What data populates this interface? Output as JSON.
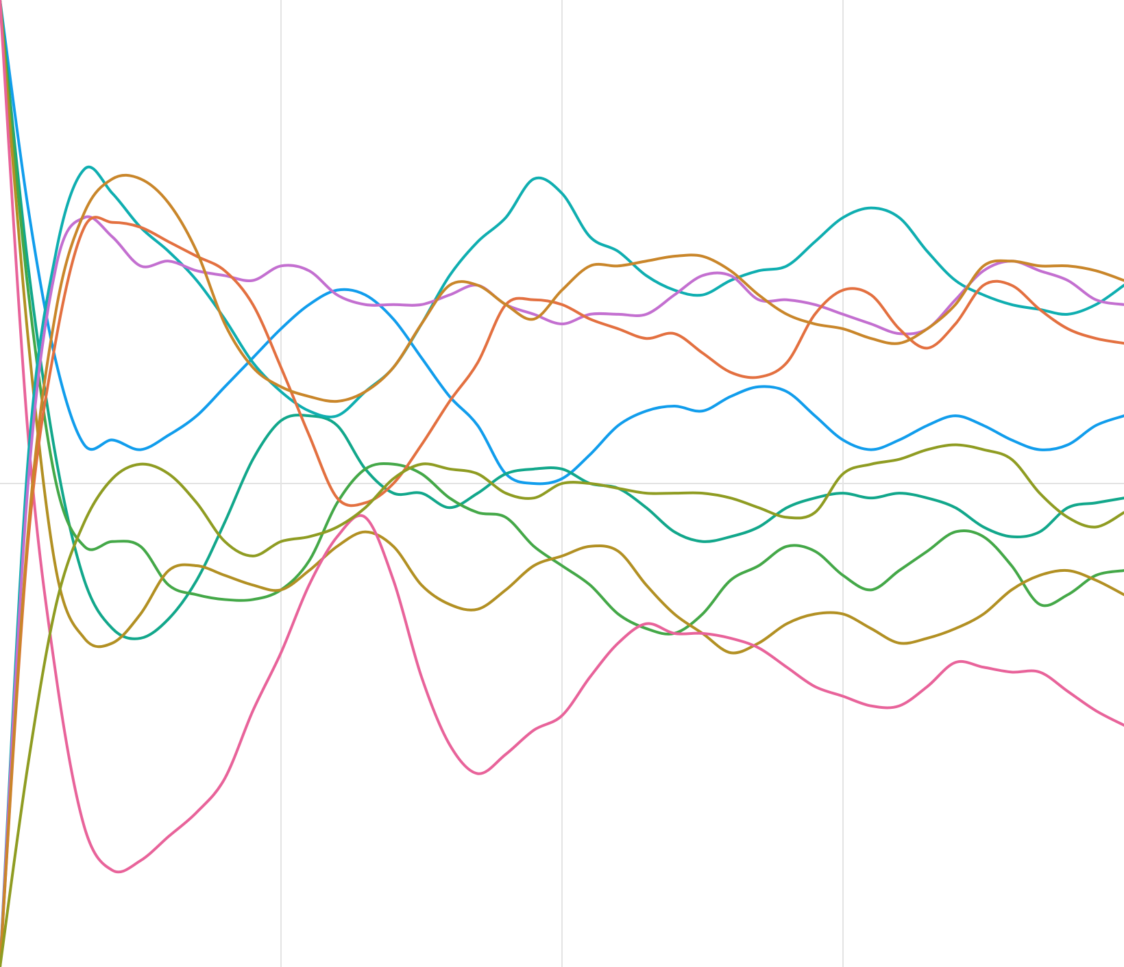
{
  "chart_data": [
    {
      "type": "line",
      "xlim": [
        0,
        4
      ],
      "ylim": [
        0,
        2
      ],
      "x_grid": [
        1,
        2,
        3
      ],
      "y_grid": [
        1
      ],
      "grid": true,
      "series": [
        {
          "color": "#119DEC",
          "x": [
            0,
            0.1,
            0.2,
            0.3,
            0.4,
            0.5,
            0.6,
            0.7,
            0.8,
            0.9,
            1.0,
            1.1,
            1.2,
            1.3,
            1.4,
            1.5,
            1.6,
            1.7,
            1.8,
            1.9,
            2.0,
            2.1,
            2.2,
            2.3,
            2.4,
            2.5,
            2.6,
            2.7,
            2.8,
            2.9,
            3.0,
            3.1,
            3.2,
            3.3,
            3.4,
            3.5,
            3.6,
            3.7,
            3.8,
            3.9,
            4.0
          ],
          "y": [
            2.0,
            1.57,
            1.25,
            1.08,
            1.09,
            1.07,
            1.1,
            1.14,
            1.2,
            1.26,
            1.32,
            1.37,
            1.4,
            1.39,
            1.34,
            1.26,
            1.18,
            1.12,
            1.02,
            1.0,
            1.01,
            1.06,
            1.12,
            1.15,
            1.16,
            1.15,
            1.18,
            1.2,
            1.19,
            1.14,
            1.09,
            1.07,
            1.09,
            1.12,
            1.14,
            1.12,
            1.09,
            1.07,
            1.08,
            1.12,
            1.14
          ]
        },
        {
          "color": "#12A78B",
          "x": [
            0,
            0.1,
            0.2,
            0.3,
            0.4,
            0.5,
            0.6,
            0.7,
            0.8,
            0.9,
            1.0,
            1.1,
            1.2,
            1.3,
            1.4,
            1.5,
            1.6,
            1.7,
            1.8,
            1.9,
            2.0,
            2.1,
            2.2,
            2.3,
            2.4,
            2.5,
            2.6,
            2.7,
            2.8,
            2.9,
            3.0,
            3.1,
            3.2,
            3.3,
            3.4,
            3.5,
            3.6,
            3.7,
            3.8,
            3.9,
            4.0
          ],
          "y": [
            2.0,
            1.45,
            1.05,
            0.8,
            0.7,
            0.68,
            0.72,
            0.8,
            0.92,
            1.05,
            1.13,
            1.14,
            1.12,
            1.03,
            0.98,
            0.98,
            0.95,
            0.98,
            1.02,
            1.03,
            1.03,
            1.0,
            0.99,
            0.95,
            0.9,
            0.88,
            0.89,
            0.91,
            0.95,
            0.97,
            0.98,
            0.97,
            0.98,
            0.97,
            0.95,
            0.91,
            0.89,
            0.9,
            0.95,
            0.96,
            0.97
          ]
        },
        {
          "color": "#44A848",
          "x": [
            0,
            0.1,
            0.2,
            0.3,
            0.4,
            0.5,
            0.6,
            0.7,
            0.8,
            0.9,
            1.0,
            1.1,
            1.2,
            1.3,
            1.4,
            1.5,
            1.6,
            1.7,
            1.8,
            1.9,
            2.0,
            2.1,
            2.2,
            2.3,
            2.4,
            2.5,
            2.6,
            2.7,
            2.8,
            2.9,
            3.0,
            3.1,
            3.2,
            3.3,
            3.4,
            3.5,
            3.6,
            3.7,
            3.8,
            3.9,
            4.0
          ],
          "y": [
            2.0,
            1.4,
            1.0,
            0.87,
            0.88,
            0.87,
            0.79,
            0.77,
            0.76,
            0.76,
            0.78,
            0.84,
            0.96,
            1.03,
            1.04,
            1.02,
            0.97,
            0.94,
            0.93,
            0.87,
            0.83,
            0.79,
            0.73,
            0.7,
            0.69,
            0.73,
            0.8,
            0.83,
            0.87,
            0.86,
            0.81,
            0.78,
            0.82,
            0.86,
            0.9,
            0.89,
            0.83,
            0.75,
            0.77,
            0.81,
            0.82
          ]
        },
        {
          "color": "#B29023",
          "x": [
            0,
            0.1,
            0.2,
            0.3,
            0.4,
            0.5,
            0.6,
            0.7,
            0.8,
            0.9,
            1.0,
            1.1,
            1.2,
            1.3,
            1.4,
            1.5,
            1.6,
            1.7,
            1.8,
            1.9,
            2.0,
            2.1,
            2.2,
            2.3,
            2.4,
            2.5,
            2.6,
            2.7,
            2.8,
            2.9,
            3.0,
            3.1,
            3.2,
            3.3,
            3.4,
            3.5,
            3.6,
            3.7,
            3.8,
            3.9,
            4.0
          ],
          "y": [
            2.0,
            1.3,
            0.82,
            0.68,
            0.67,
            0.73,
            0.82,
            0.83,
            0.81,
            0.79,
            0.78,
            0.82,
            0.87,
            0.9,
            0.87,
            0.79,
            0.75,
            0.74,
            0.78,
            0.83,
            0.85,
            0.87,
            0.86,
            0.79,
            0.73,
            0.69,
            0.65,
            0.67,
            0.71,
            0.73,
            0.73,
            0.7,
            0.67,
            0.68,
            0.7,
            0.73,
            0.78,
            0.81,
            0.82,
            0.8,
            0.77
          ]
        },
        {
          "color": "#E8639A",
          "x": [
            0,
            0.1,
            0.2,
            0.3,
            0.4,
            0.5,
            0.6,
            0.7,
            0.8,
            0.9,
            1.0,
            1.1,
            1.2,
            1.3,
            1.4,
            1.5,
            1.6,
            1.7,
            1.8,
            1.9,
            2.0,
            2.1,
            2.2,
            2.3,
            2.4,
            2.5,
            2.6,
            2.7,
            2.8,
            2.9,
            3.0,
            3.1,
            3.2,
            3.3,
            3.4,
            3.5,
            3.6,
            3.7,
            3.8,
            3.9,
            4.0
          ],
          "y": [
            2.0,
            1.1,
            0.6,
            0.29,
            0.2,
            0.22,
            0.27,
            0.32,
            0.39,
            0.53,
            0.65,
            0.79,
            0.89,
            0.93,
            0.8,
            0.6,
            0.46,
            0.4,
            0.44,
            0.49,
            0.52,
            0.6,
            0.67,
            0.71,
            0.69,
            0.69,
            0.68,
            0.66,
            0.62,
            0.58,
            0.56,
            0.54,
            0.54,
            0.58,
            0.63,
            0.62,
            0.61,
            0.61,
            0.57,
            0.53,
            0.5
          ]
        },
        {
          "color": "#0FAEB0",
          "x": [
            0,
            0.1,
            0.2,
            0.3,
            0.4,
            0.5,
            0.6,
            0.7,
            0.8,
            0.9,
            1.0,
            1.1,
            1.2,
            1.3,
            1.4,
            1.5,
            1.6,
            1.7,
            1.8,
            1.9,
            2.0,
            2.1,
            2.2,
            2.3,
            2.4,
            2.5,
            2.6,
            2.7,
            2.8,
            2.9,
            3.0,
            3.1,
            3.2,
            3.3,
            3.4,
            3.5,
            3.6,
            3.7,
            3.8,
            3.9,
            4.0
          ],
          "y": [
            0.0,
            1.05,
            1.48,
            1.65,
            1.6,
            1.53,
            1.48,
            1.42,
            1.34,
            1.25,
            1.19,
            1.15,
            1.14,
            1.19,
            1.24,
            1.33,
            1.43,
            1.5,
            1.55,
            1.63,
            1.6,
            1.51,
            1.48,
            1.43,
            1.4,
            1.39,
            1.42,
            1.44,
            1.45,
            1.5,
            1.55,
            1.57,
            1.55,
            1.48,
            1.42,
            1.39,
            1.37,
            1.36,
            1.35,
            1.37,
            1.41
          ]
        },
        {
          "color": "#C36FD0",
          "x": [
            0,
            0.1,
            0.2,
            0.3,
            0.4,
            0.5,
            0.6,
            0.7,
            0.8,
            0.9,
            1.0,
            1.1,
            1.2,
            1.3,
            1.4,
            1.5,
            1.6,
            1.7,
            1.8,
            1.9,
            2.0,
            2.1,
            2.2,
            2.3,
            2.4,
            2.5,
            2.6,
            2.7,
            2.8,
            2.9,
            3.0,
            3.1,
            3.2,
            3.3,
            3.4,
            3.5,
            3.6,
            3.7,
            3.8,
            3.9,
            4.0
          ],
          "y": [
            0.0,
            1.0,
            1.45,
            1.55,
            1.51,
            1.45,
            1.46,
            1.44,
            1.43,
            1.42,
            1.45,
            1.44,
            1.39,
            1.37,
            1.37,
            1.37,
            1.39,
            1.41,
            1.37,
            1.35,
            1.33,
            1.35,
            1.35,
            1.35,
            1.39,
            1.43,
            1.43,
            1.38,
            1.38,
            1.37,
            1.35,
            1.33,
            1.31,
            1.32,
            1.38,
            1.44,
            1.46,
            1.44,
            1.42,
            1.38,
            1.37
          ]
        },
        {
          "color": "#E37040",
          "x": [
            0,
            0.1,
            0.2,
            0.3,
            0.4,
            0.5,
            0.6,
            0.7,
            0.8,
            0.9,
            1.0,
            1.1,
            1.2,
            1.3,
            1.4,
            1.5,
            1.6,
            1.7,
            1.8,
            1.9,
            2.0,
            2.1,
            2.2,
            2.3,
            2.4,
            2.5,
            2.6,
            2.7,
            2.8,
            2.9,
            3.0,
            3.1,
            3.2,
            3.3,
            3.4,
            3.5,
            3.6,
            3.7,
            3.8,
            3.9,
            4.0
          ],
          "y": [
            0.0,
            0.88,
            1.3,
            1.53,
            1.54,
            1.53,
            1.5,
            1.47,
            1.44,
            1.37,
            1.24,
            1.1,
            0.97,
            0.96,
            1.0,
            1.08,
            1.17,
            1.25,
            1.37,
            1.38,
            1.37,
            1.34,
            1.32,
            1.3,
            1.31,
            1.27,
            1.23,
            1.22,
            1.25,
            1.35,
            1.4,
            1.39,
            1.32,
            1.28,
            1.33,
            1.41,
            1.41,
            1.36,
            1.32,
            1.3,
            1.29
          ]
        },
        {
          "color": "#C9862A",
          "x": [
            0,
            0.1,
            0.2,
            0.3,
            0.4,
            0.5,
            0.6,
            0.7,
            0.8,
            0.9,
            1.0,
            1.1,
            1.2,
            1.3,
            1.4,
            1.5,
            1.6,
            1.7,
            1.8,
            1.9,
            2.0,
            2.1,
            2.2,
            2.3,
            2.4,
            2.5,
            2.6,
            2.7,
            2.8,
            2.9,
            3.0,
            3.1,
            3.2,
            3.3,
            3.4,
            3.5,
            3.6,
            3.7,
            3.8,
            3.9,
            4.0
          ],
          "y": [
            0.0,
            0.9,
            1.36,
            1.56,
            1.63,
            1.63,
            1.58,
            1.48,
            1.33,
            1.24,
            1.2,
            1.18,
            1.17,
            1.19,
            1.24,
            1.33,
            1.41,
            1.41,
            1.37,
            1.34,
            1.4,
            1.45,
            1.45,
            1.46,
            1.47,
            1.47,
            1.44,
            1.39,
            1.35,
            1.33,
            1.32,
            1.3,
            1.29,
            1.32,
            1.37,
            1.45,
            1.46,
            1.45,
            1.45,
            1.44,
            1.42
          ]
        },
        {
          "color": "#8F9C22",
          "x": [
            0,
            0.1,
            0.2,
            0.3,
            0.4,
            0.5,
            0.6,
            0.7,
            0.8,
            0.9,
            1.0,
            1.1,
            1.2,
            1.3,
            1.4,
            1.5,
            1.6,
            1.7,
            1.8,
            1.9,
            2.0,
            2.1,
            2.2,
            2.3,
            2.4,
            2.5,
            2.6,
            2.7,
            2.8,
            2.9,
            3.0,
            3.1,
            3.2,
            3.3,
            3.4,
            3.5,
            3.6,
            3.7,
            3.8,
            3.9,
            4.0
          ],
          "y": [
            0.0,
            0.42,
            0.75,
            0.92,
            1.01,
            1.04,
            1.02,
            0.96,
            0.88,
            0.85,
            0.88,
            0.89,
            0.91,
            0.95,
            1.01,
            1.04,
            1.03,
            1.02,
            0.98,
            0.97,
            1.0,
            1.0,
            0.99,
            0.98,
            0.98,
            0.98,
            0.97,
            0.95,
            0.93,
            0.94,
            1.02,
            1.04,
            1.05,
            1.07,
            1.08,
            1.07,
            1.05,
            0.98,
            0.93,
            0.91,
            0.94
          ]
        }
      ]
    }
  ]
}
